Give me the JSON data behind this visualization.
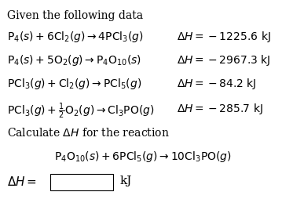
{
  "title": "Given the following data",
  "reactions": [
    {
      "eq": "$\\mathrm{P_4}(s) + 6\\mathrm{Cl_2}(g) \\rightarrow 4\\mathrm{PCl_3}(g)$",
      "dH": "$\\Delta H = -1225.6\\ \\mathrm{kJ}$"
    },
    {
      "eq": "$\\mathrm{P_4}(s) + 5\\mathrm{O_2}(g) \\rightarrow \\mathrm{P_4O_{10}}(s)$",
      "dH": "$\\Delta H = -2967.3\\ \\mathrm{kJ}$"
    },
    {
      "eq": "$\\mathrm{PCl_3}(g) + \\mathrm{Cl_2}(g) \\rightarrow \\mathrm{PCl_5}(g)$",
      "dH": "$\\Delta H = -84.2\\ \\mathrm{kJ}$"
    },
    {
      "eq": "$\\mathrm{PCl_3}(g) + \\frac{1}{2}\\mathrm{O_2}(g) \\rightarrow \\mathrm{Cl_3PO}(g)$",
      "dH": "$\\Delta H = -285.7\\ \\mathrm{kJ}$"
    }
  ],
  "calc_label": "Calculate $\\Delta H$ for the reaction",
  "target_eq": "$\\mathrm{P_4O_{10}}(s) + 6\\mathrm{PCl_5}(g) \\rightarrow 10\\mathrm{Cl_3PO}(g)$",
  "answer_label": "$\\Delta H =$",
  "answer_unit": "kJ",
  "bg_color": "#ffffff",
  "text_color": "#000000",
  "fontsize_title": 10,
  "fontsize_eq": 10,
  "fontsize_calc": 10,
  "fontsize_answer": 11
}
